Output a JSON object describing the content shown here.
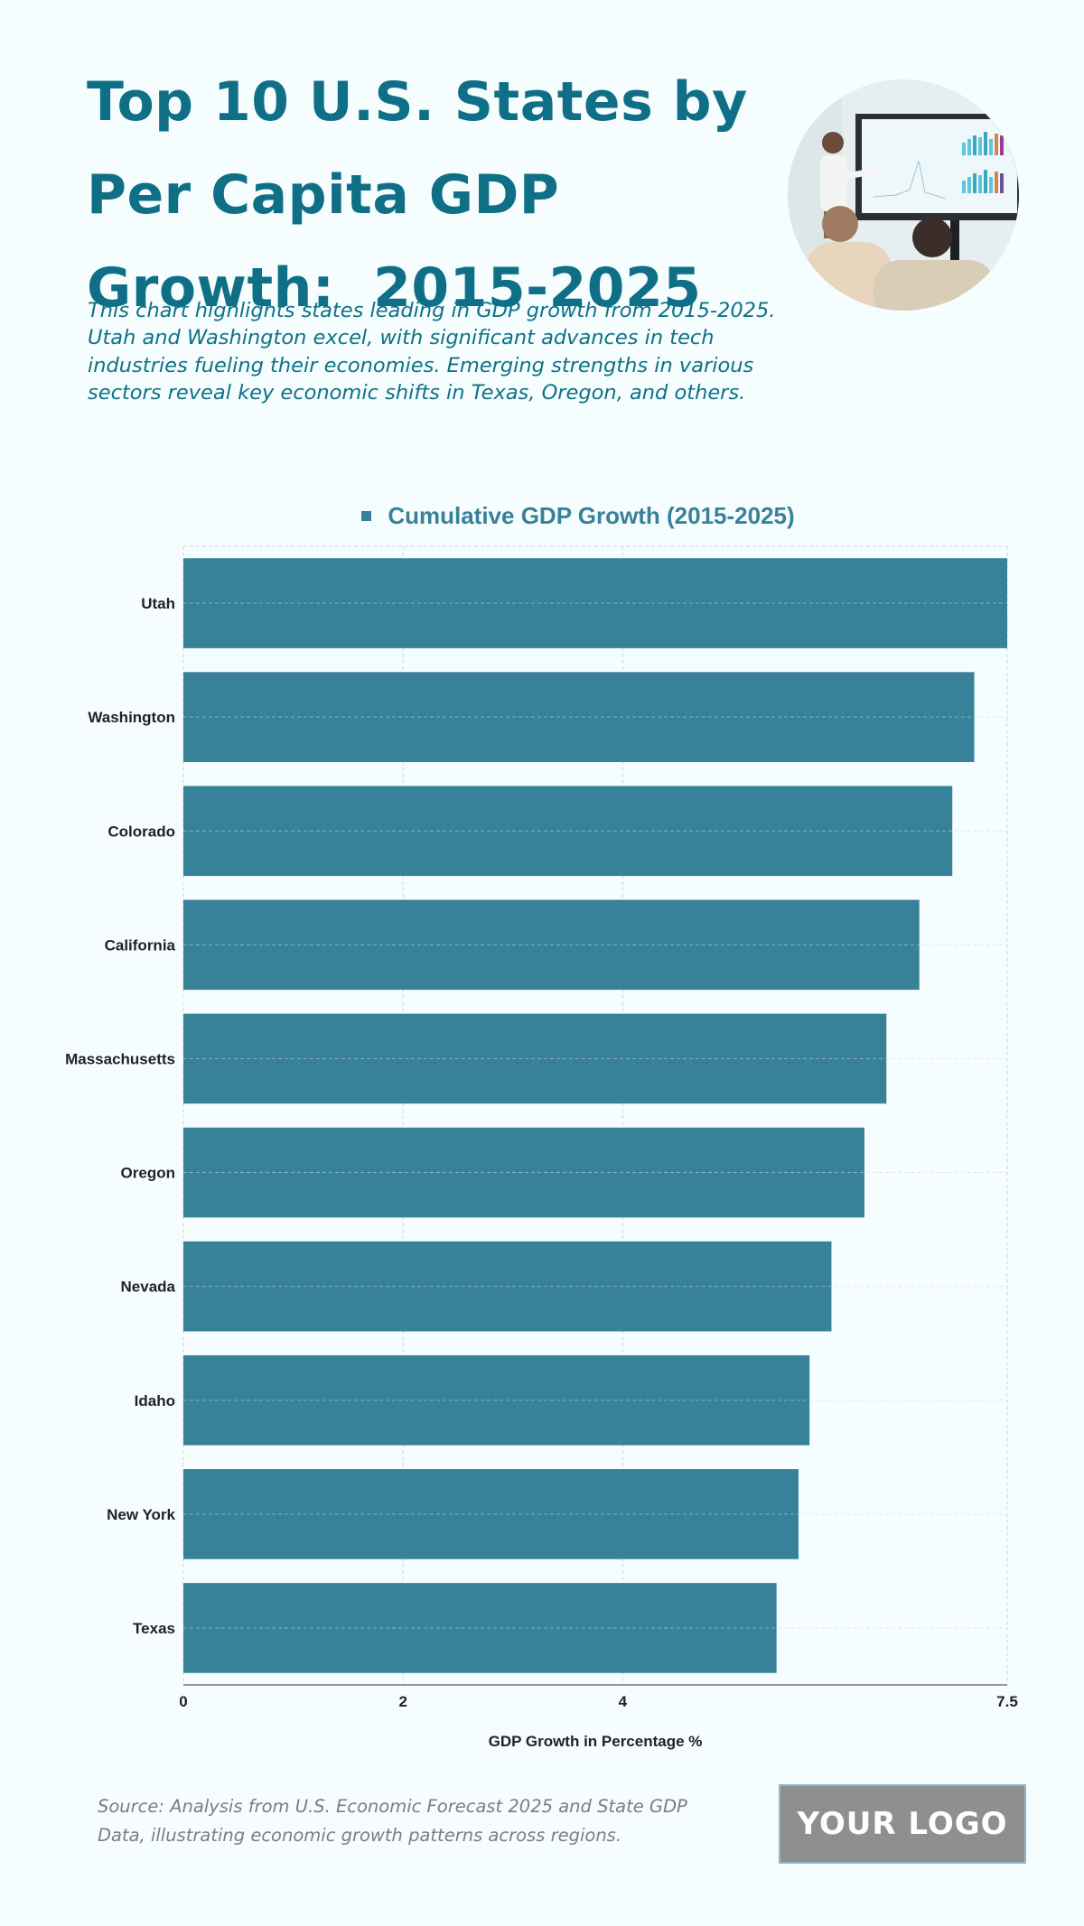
{
  "header": {
    "title_lines": [
      "Top 10 U.S. States by",
      "Per Capita GDP",
      "Growth:  2015-2025"
    ],
    "subtitle": "This chart highlights states leading in GDP growth from 2015-2025. Utah and Washington excel, with significant advances in tech industries fueling their economies. Emerging strengths in various sectors reveal key economic shifts in Texas, Oregon, and others.",
    "photo_alt": "presentation-photo"
  },
  "colors": {
    "bar": "#378199",
    "title": "#0f6f86",
    "subtitle": "#0e7285",
    "background": "#f6fdff",
    "grid": "#cfd6da",
    "axis": "#777777",
    "logo_bg": "#8f8f8f"
  },
  "chart_data": {
    "type": "bar",
    "orientation": "horizontal",
    "legend": [
      "Cumulative GDP Growth (2015-2025)"
    ],
    "legend_position": "top-center",
    "categories": [
      "Utah",
      "Washington",
      "Colorado",
      "California",
      "Massachusetts",
      "Oregon",
      "Nevada",
      "Idaho",
      "New York",
      "Texas"
    ],
    "series": [
      {
        "name": "Cumulative GDP Growth (2015-2025)",
        "values": [
          7.5,
          7.2,
          7.0,
          6.7,
          6.4,
          6.2,
          5.9,
          5.7,
          5.6,
          5.4
        ]
      }
    ],
    "xlabel": "GDP Growth in Percentage %",
    "ylabel": "",
    "xlim": [
      0,
      7.5
    ],
    "xticks": [
      0,
      2,
      4,
      7.5
    ],
    "xtick_labels": [
      "0",
      "2",
      "4",
      "7.5"
    ],
    "grid": true
  },
  "footer": {
    "source": "Source: Analysis from U.S. Economic Forecast 2025 and State GDP Data, illustrating economic growth patterns across regions.",
    "logo_text": "YOUR LOGO"
  }
}
